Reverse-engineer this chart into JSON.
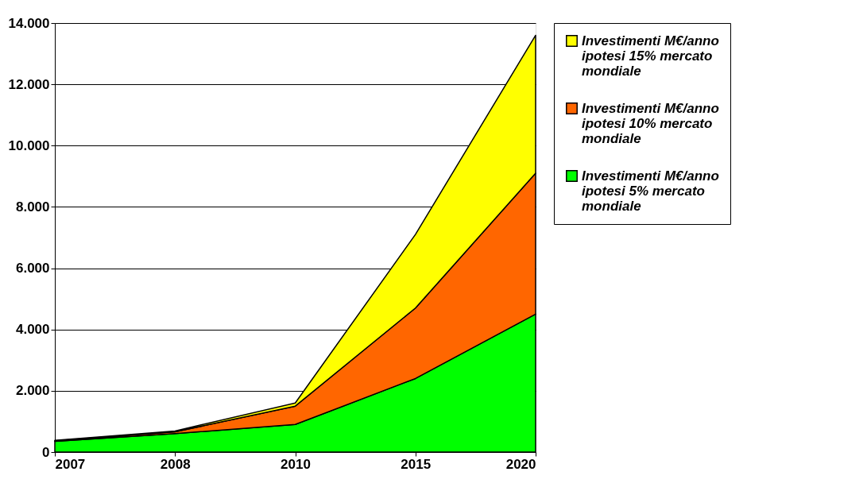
{
  "chart_data": {
    "type": "area",
    "stacked": true,
    "categories": [
      "2007",
      "2008",
      "2010",
      "2015",
      "2020"
    ],
    "series": [
      {
        "name": "Investimenti M€/anno ipotesi 5% mercato mondiale",
        "color": "#00ff00",
        "values": [
          350,
          600,
          900,
          2400,
          4500
        ]
      },
      {
        "name": "Investimenti M€/anno ipotesi 10% mercato mondiale",
        "color": "#ff6600",
        "values": [
          20,
          60,
          600,
          2300,
          4600
        ]
      },
      {
        "name": "Investimenti M€/anno ipotesi 15% mercato mondiale",
        "color": "#ffff00",
        "values": [
          10,
          30,
          100,
          2400,
          4500
        ]
      }
    ],
    "ylim": [
      0,
      14000
    ],
    "yticks": [
      {
        "value": 0,
        "label": "0"
      },
      {
        "value": 2000,
        "label": "2.000"
      },
      {
        "value": 4000,
        "label": "4.000"
      },
      {
        "value": 6000,
        "label": "6.000"
      },
      {
        "value": 8000,
        "label": "8.000"
      },
      {
        "value": 10000,
        "label": "10.000"
      },
      {
        "value": 12000,
        "label": "12.000"
      },
      {
        "value": 14000,
        "label": "14.000"
      }
    ],
    "grid": "y",
    "legend": "right"
  }
}
